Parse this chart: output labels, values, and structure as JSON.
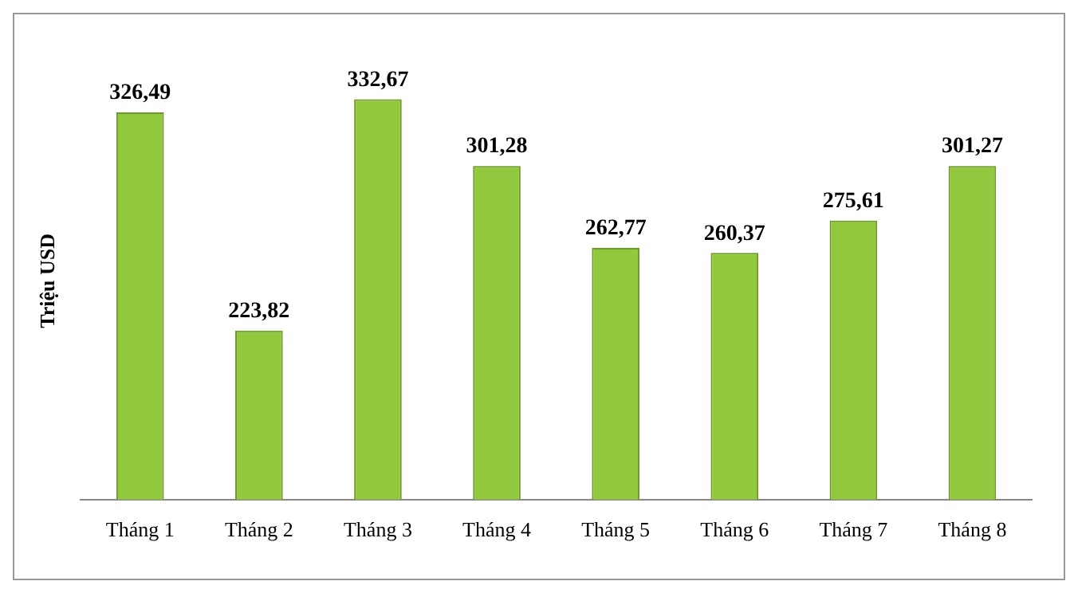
{
  "chart_data": {
    "type": "bar",
    "ylabel": "Triệu USD",
    "categories": [
      "Tháng 1",
      "Tháng 2",
      "Tháng 3",
      "Tháng 4",
      "Tháng 5",
      "Tháng 6",
      "Tháng 7",
      "Tháng 8"
    ],
    "values": [
      326.49,
      223.82,
      332.67,
      301.28,
      262.77,
      260.37,
      275.61,
      301.27
    ],
    "value_labels": [
      "326,49",
      "223,82",
      "332,67",
      "301,28",
      "262,77",
      "260,37",
      "275,61",
      "301,27"
    ],
    "color": "#92c83e",
    "tick_labels": "x",
    "grid": false,
    "legend": false
  }
}
